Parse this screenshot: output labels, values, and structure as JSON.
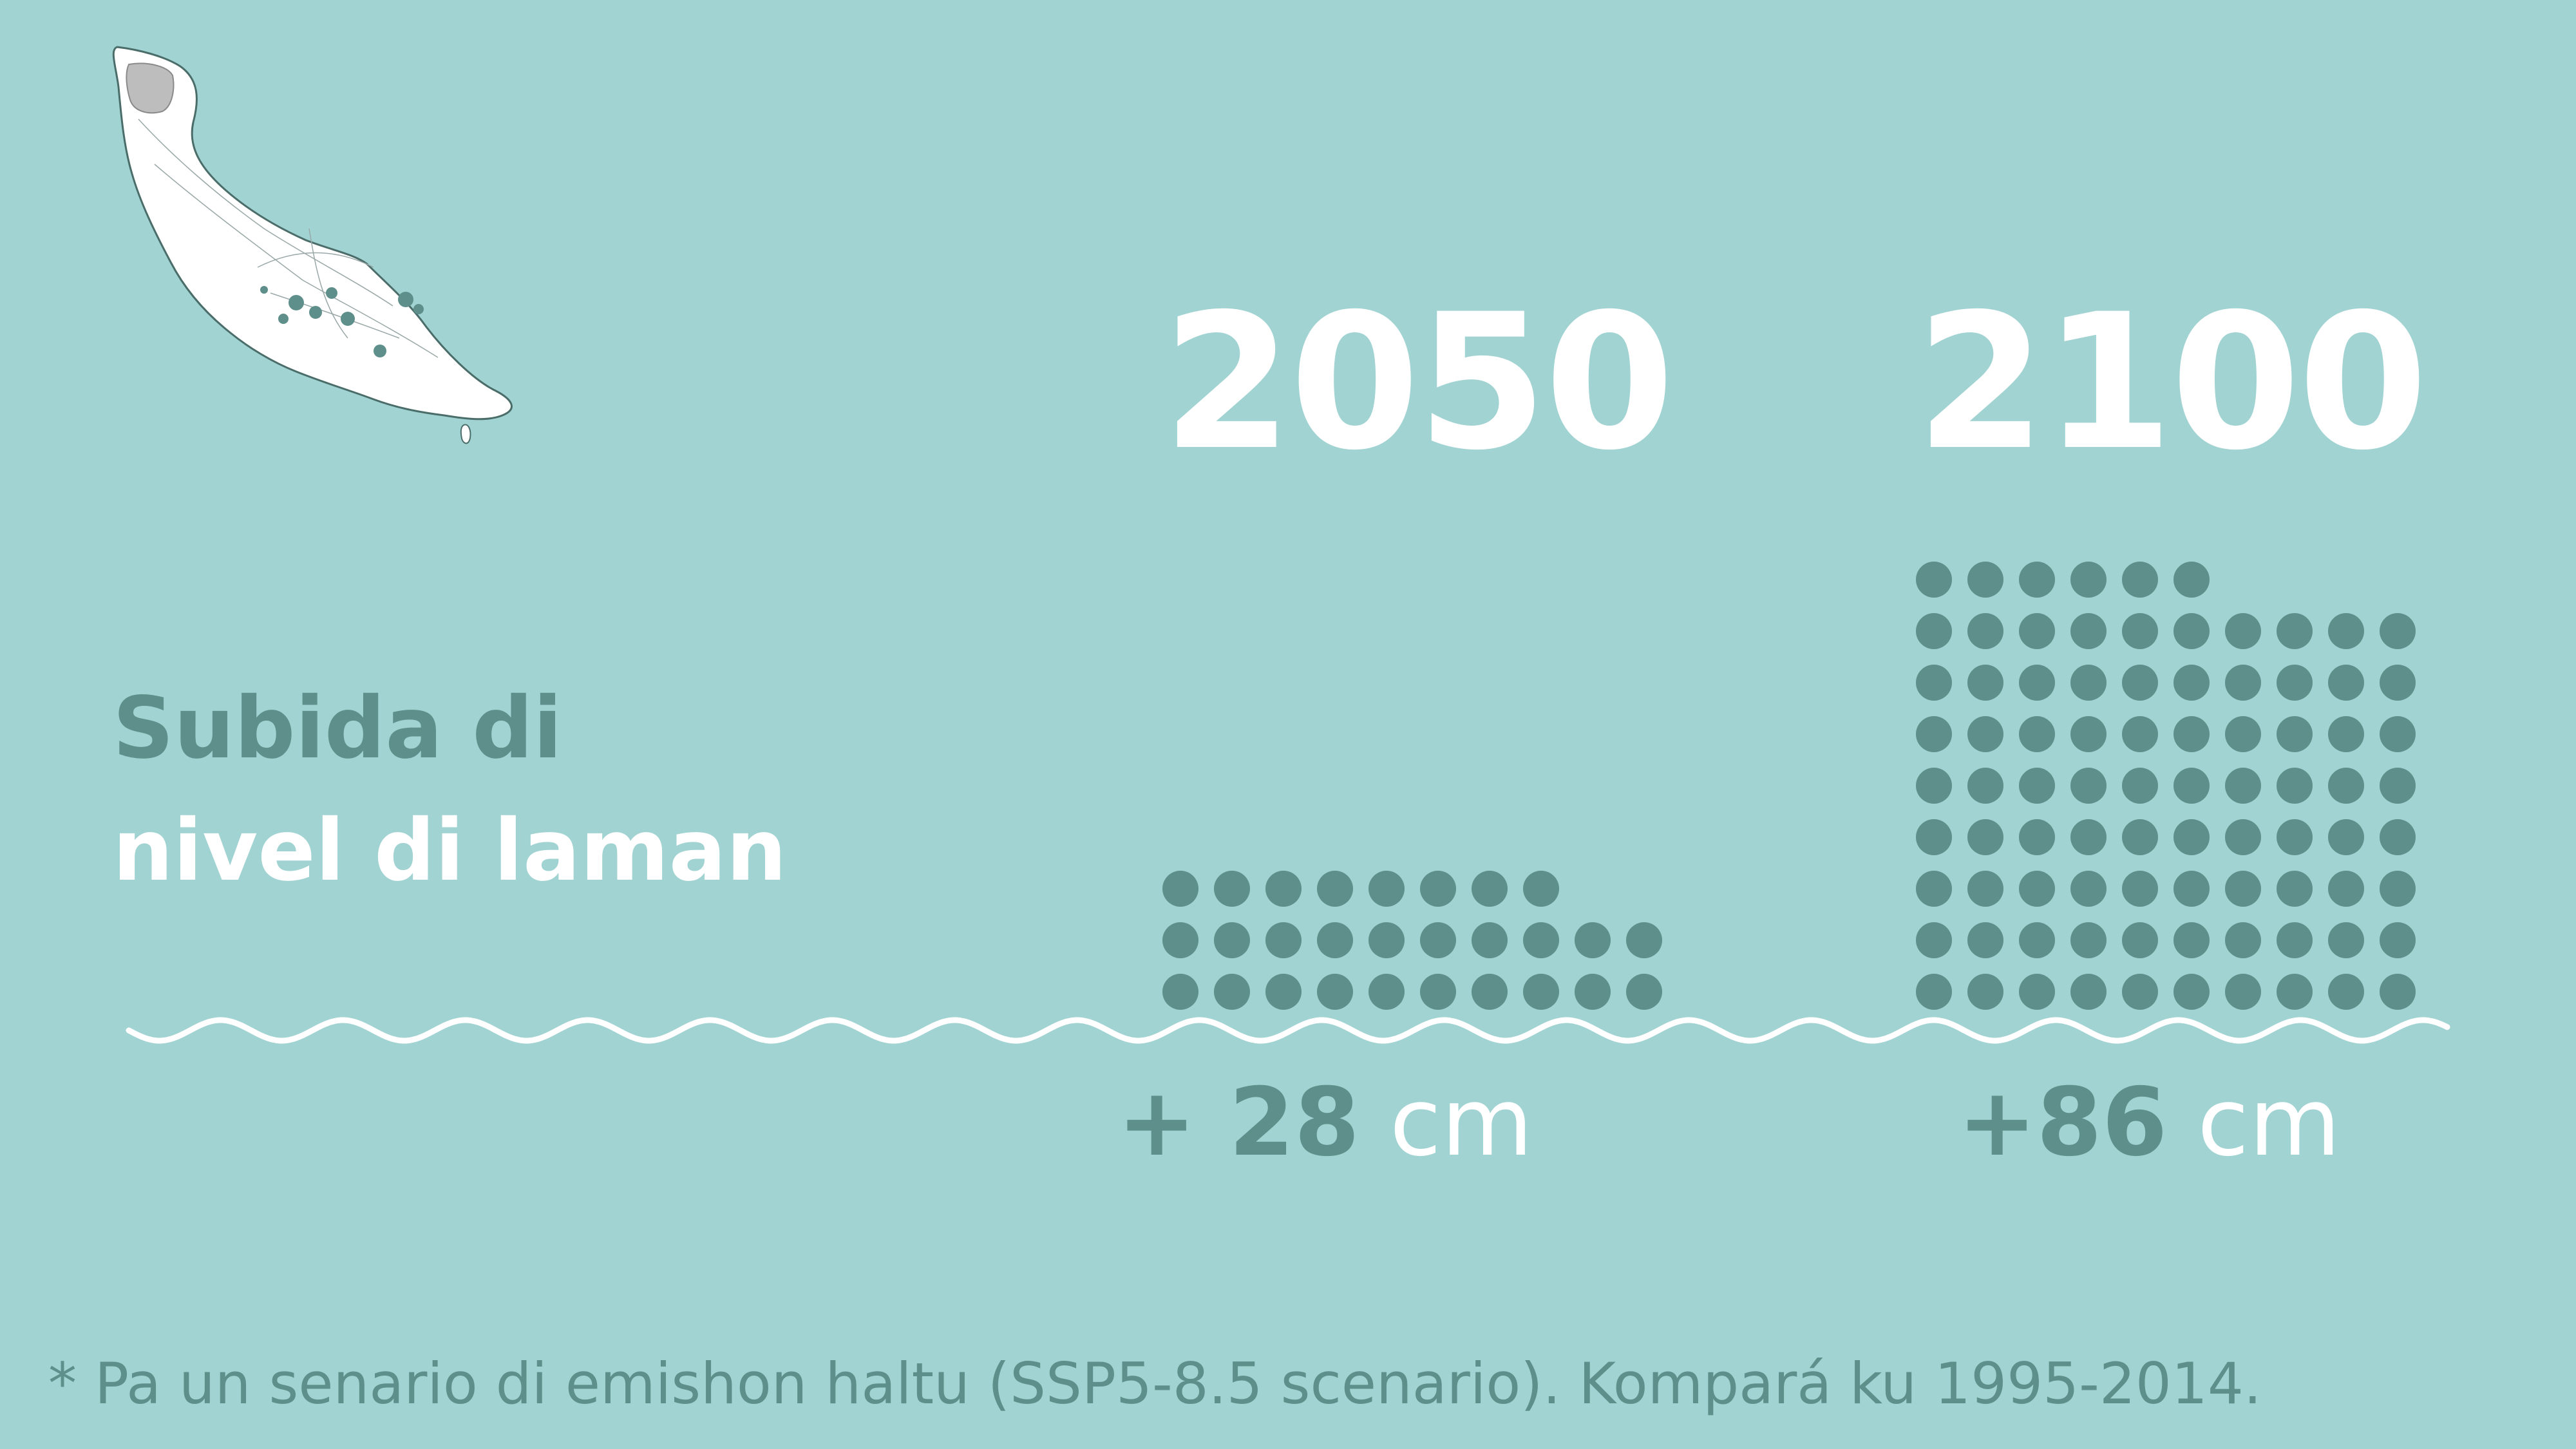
{
  "title": {
    "line1": "Subida di",
    "line2": "nivel di laman"
  },
  "map": {
    "icon": "curacao-island-map",
    "land_color": "#ffffff",
    "highlight_color": "#5e8f8b",
    "park_color": "#bdbdbd"
  },
  "colors": {
    "background": "#a1d3d3",
    "accent": "#5e8f8b",
    "white": "#ffffff"
  },
  "chart_data": {
    "type": "dot-matrix",
    "categories": [
      "2050",
      "2100"
    ],
    "series": [
      {
        "values": [
          28,
          86
        ]
      }
    ],
    "value_labels": [
      {
        "number": "+ 28",
        "unit": "cm"
      },
      {
        "number": "+86",
        "unit": "cm"
      }
    ],
    "unit": "cm",
    "dots_per_unit": 1,
    "dots_per_row": 10,
    "dot_color": "#5e8f8b",
    "waterline_color": "#ffffff"
  },
  "footnote": "* Pa un senario di emishon haltu (SSP5-8.5 scenario). Kompará ku 1995-2014."
}
